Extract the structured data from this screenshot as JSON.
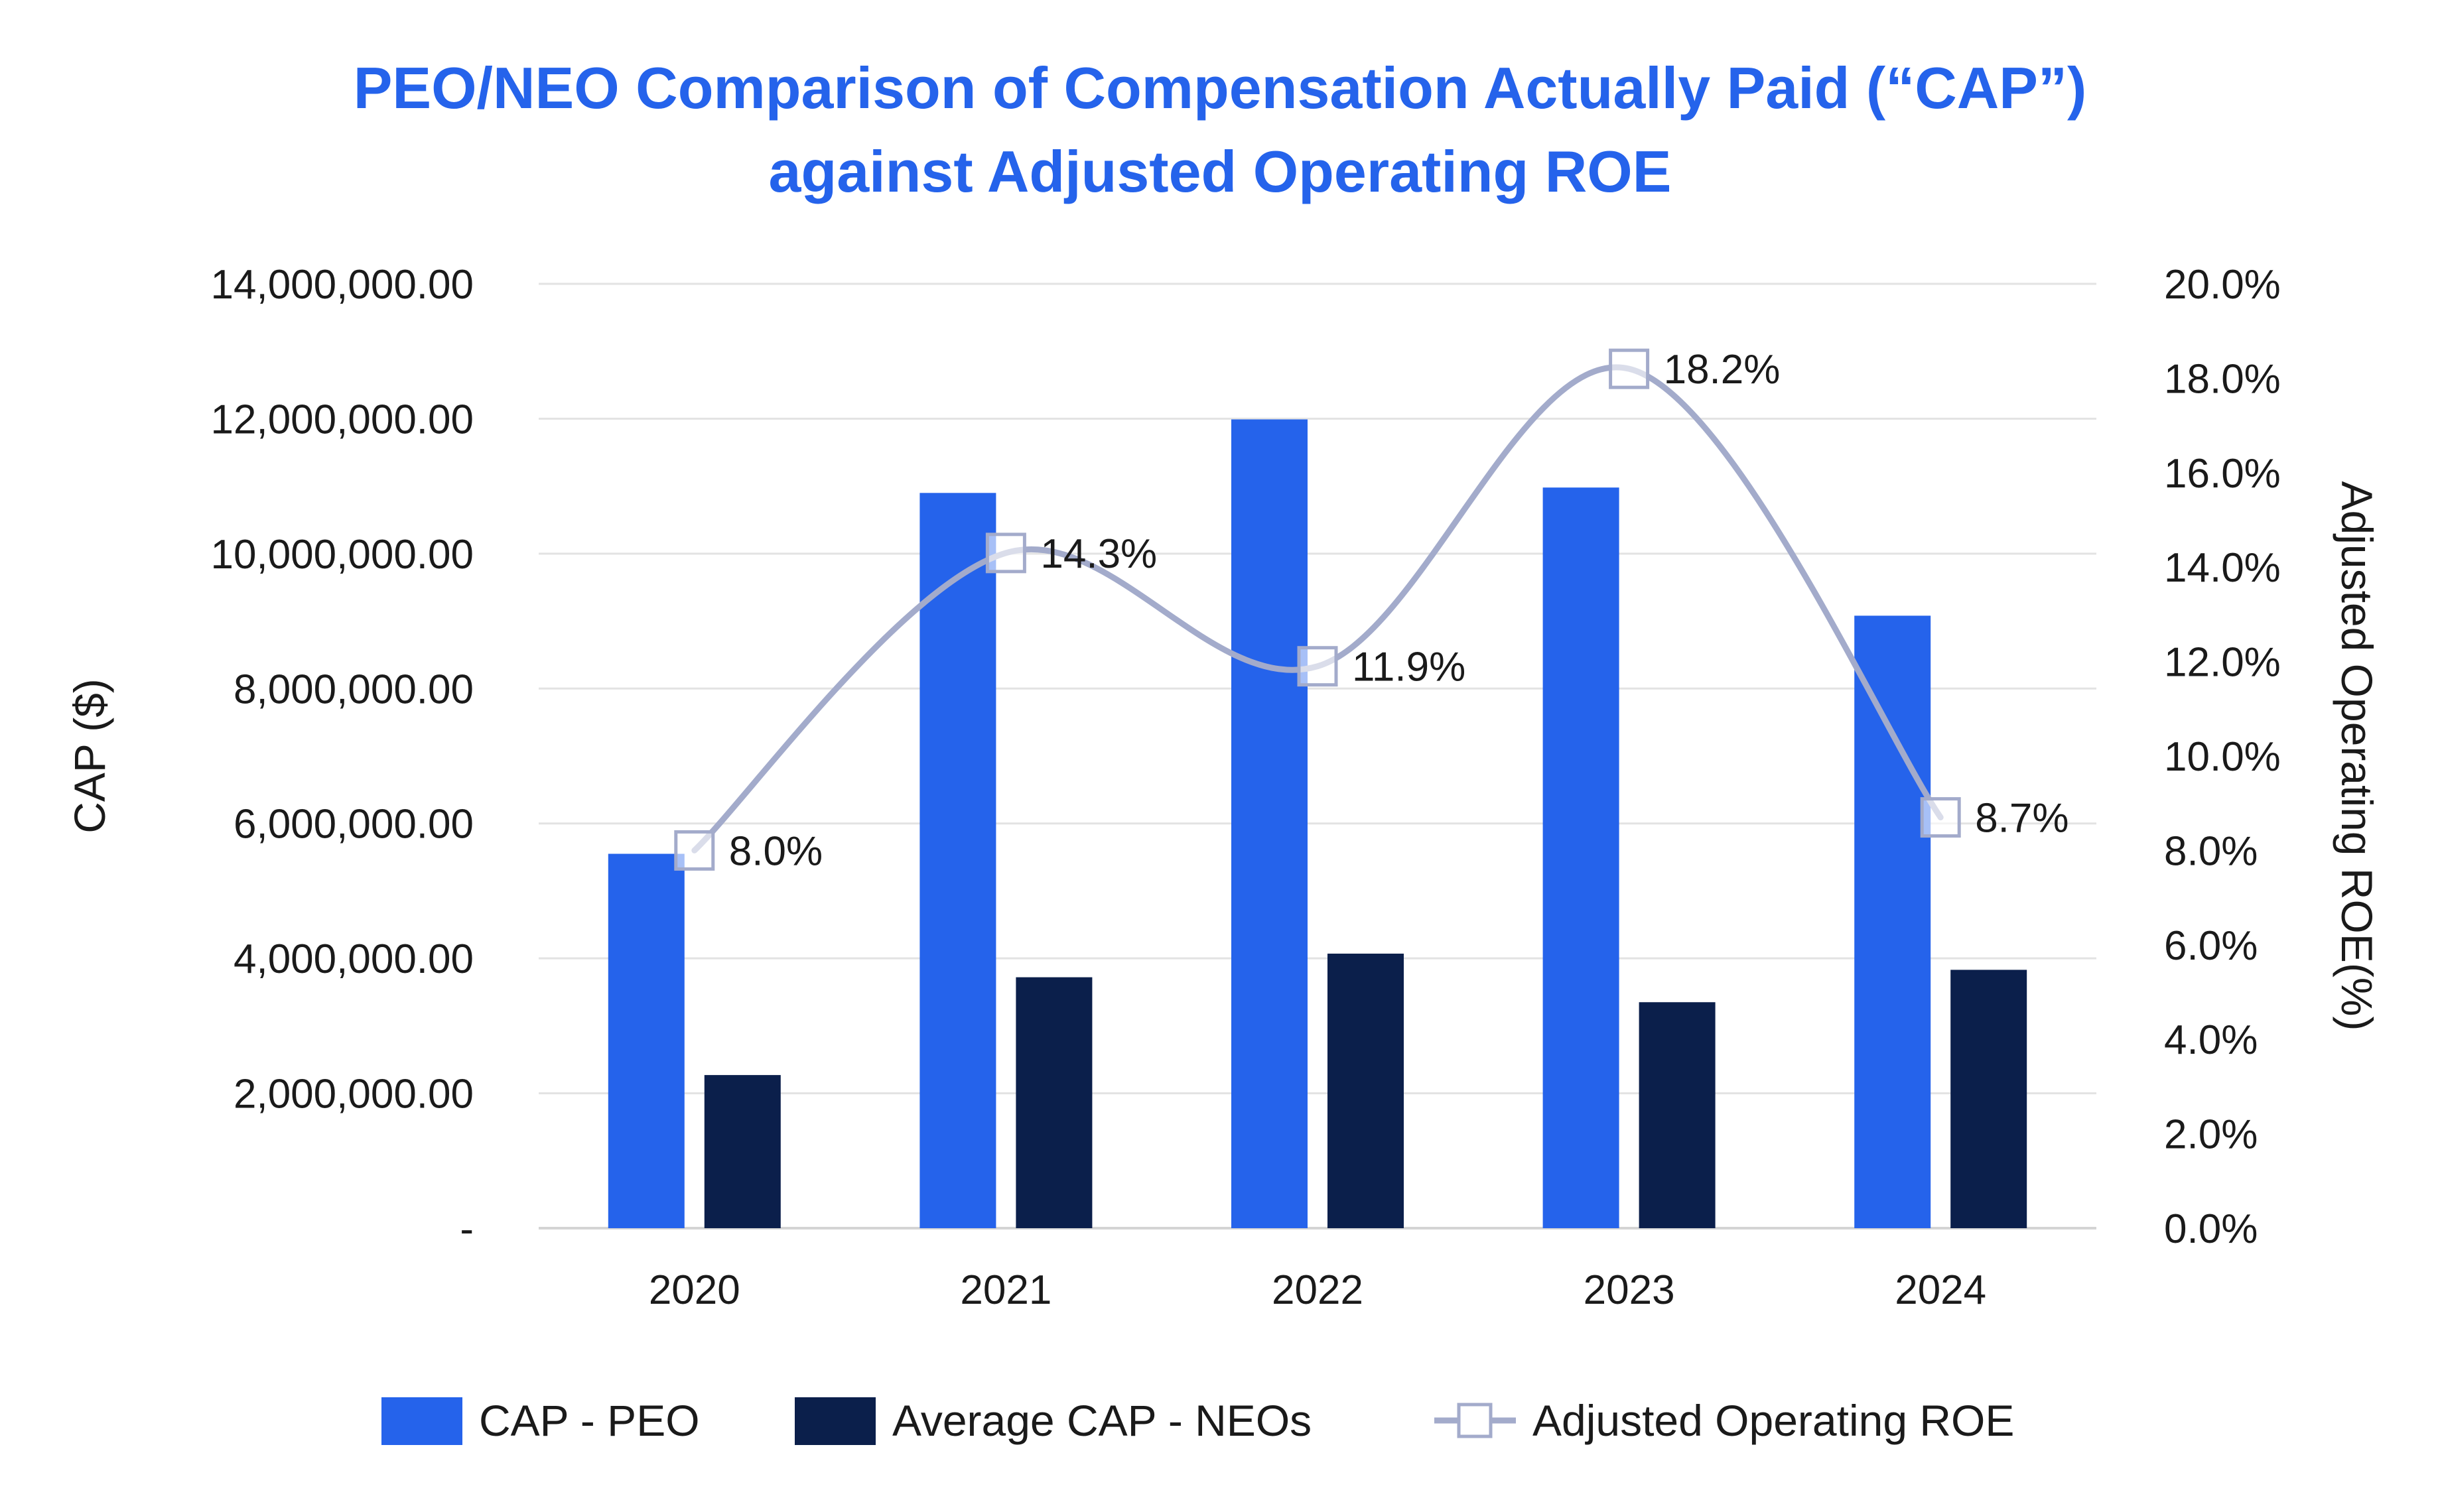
{
  "chart_data": {
    "type": "bar",
    "title_line1": "PEO/NEO Comparison of Compensation Actually Paid (“CAP”)",
    "title_line2": "against Adjusted Operating ROE",
    "categories": [
      "2020",
      "2021",
      "2022",
      "2023",
      "2024"
    ],
    "series": [
      {
        "name": "CAP - PEO",
        "type": "bar",
        "axis": "left",
        "color": "#2563eb",
        "values": [
          5550000,
          10900000,
          11990000,
          10980000,
          9080000
        ]
      },
      {
        "name": "Average CAP - NEOs",
        "type": "bar",
        "axis": "left",
        "color": "#0b1f4b",
        "values": [
          2270000,
          3720000,
          4070000,
          3350000,
          3830000
        ]
      },
      {
        "name": "Adjusted Operating ROE",
        "type": "line",
        "axis": "right",
        "color": "#a3abcb",
        "values": [
          8.0,
          14.3,
          11.9,
          18.2,
          8.7
        ],
        "labels": [
          "8.0%",
          "14.3%",
          "11.9%",
          "18.2%",
          "8.7%"
        ]
      }
    ],
    "ylabel": "CAP ($)",
    "ylabel_right": "Adjusted Operating ROE(%)",
    "ylim": [
      0,
      14000000
    ],
    "ylim_right": [
      0,
      20
    ],
    "yticks": [
      {
        "value": 0,
        "label": "-"
      },
      {
        "value": 2000000,
        "label": "2,000,000.00"
      },
      {
        "value": 4000000,
        "label": "4,000,000.00"
      },
      {
        "value": 6000000,
        "label": "6,000,000.00"
      },
      {
        "value": 8000000,
        "label": "8,000,000.00"
      },
      {
        "value": 10000000,
        "label": "10,000,000.00"
      },
      {
        "value": 12000000,
        "label": "12,000,000.00"
      },
      {
        "value": 14000000,
        "label": "14,000,000.00"
      }
    ],
    "yticks_right": [
      {
        "value": 0,
        "label": "0.0%"
      },
      {
        "value": 2,
        "label": "2.0%"
      },
      {
        "value": 4,
        "label": "4.0%"
      },
      {
        "value": 6,
        "label": "6.0%"
      },
      {
        "value": 8,
        "label": "8.0%"
      },
      {
        "value": 10,
        "label": "10.0%"
      },
      {
        "value": 12,
        "label": "12.0%"
      },
      {
        "value": 14,
        "label": "14.0%"
      },
      {
        "value": 16,
        "label": "16.0%"
      },
      {
        "value": 18,
        "label": "18.0%"
      },
      {
        "value": 20,
        "label": "20.0%"
      }
    ],
    "grid": true,
    "legend_position": "bottom"
  }
}
